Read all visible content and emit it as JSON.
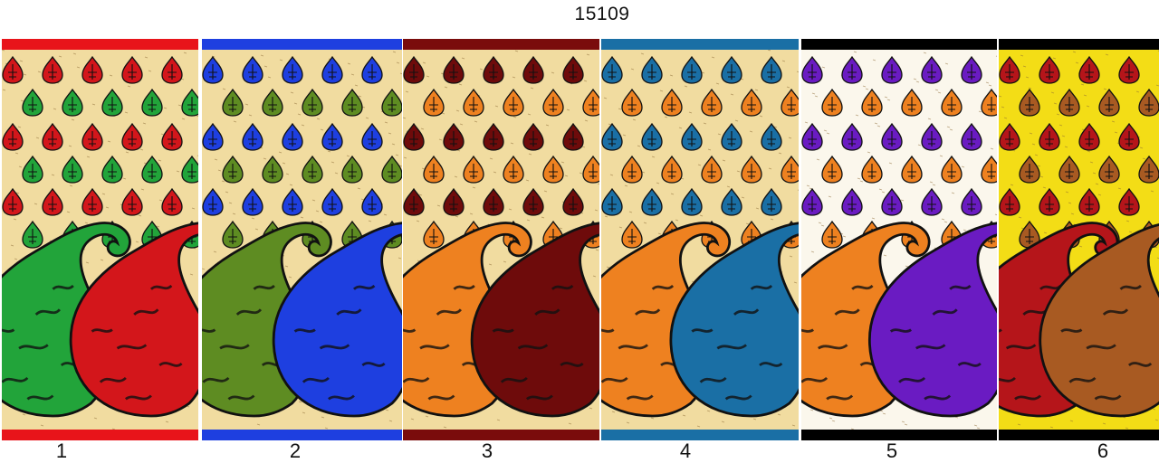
{
  "title": "15109",
  "panels": [
    {
      "number": "1",
      "border": "#e8141a",
      "ground": "#f1dca0",
      "motif_a": "#d3161b",
      "motif_b": "#22a43a",
      "paisley_left": "#22a43a",
      "paisley_right": "#d3161b"
    },
    {
      "number": "2",
      "border": "#1e3fe0",
      "ground": "#f1dca0",
      "motif_a": "#1e3fe0",
      "motif_b": "#5e8c22",
      "paisley_left": "#5e8c22",
      "paisley_right": "#1e3fe0"
    },
    {
      "number": "3",
      "border": "#7a0c0c",
      "ground": "#f1dca0",
      "motif_a": "#6e0b0b",
      "motif_b": "#ee8120",
      "paisley_left": "#ee8120",
      "paisley_right": "#6e0b0b"
    },
    {
      "number": "4",
      "border": "#1a6fa5",
      "ground": "#f1dca0",
      "motif_a": "#1a6fa5",
      "motif_b": "#ee8120",
      "paisley_left": "#ee8120",
      "paisley_right": "#1a6fa5"
    },
    {
      "number": "5",
      "border": "#000000",
      "ground": "#fbf7ec",
      "motif_a": "#6a1bc2",
      "motif_b": "#ee8120",
      "paisley_left": "#ee8120",
      "paisley_right": "#6a1bc2"
    },
    {
      "number": "6",
      "border": "#000000",
      "ground": "#f3dd16",
      "motif_a": "#b5151a",
      "motif_b": "#a85a22",
      "paisley_left": "#b5151a",
      "paisley_right": "#a85a22"
    }
  ]
}
